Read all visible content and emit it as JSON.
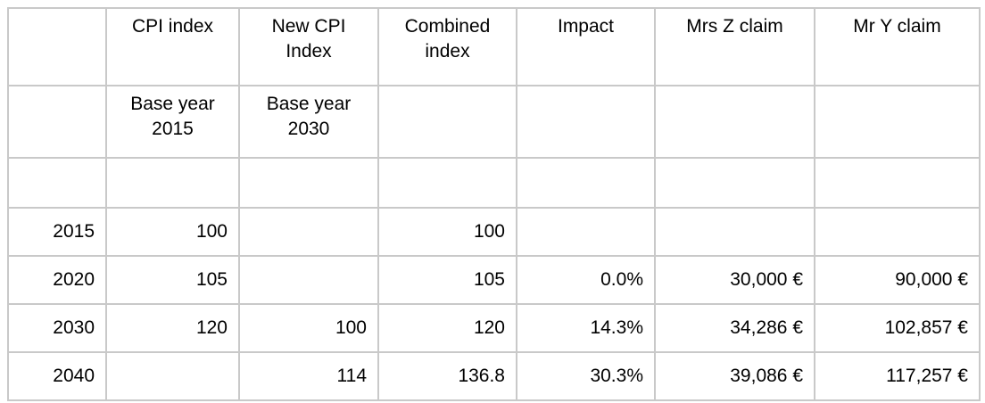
{
  "table": {
    "border_color": "#c9c9c9",
    "text_color": "#000000",
    "header_row": {
      "year": "",
      "cpi_index": "CPI index",
      "new_cpi_index": "New CPI\nIndex",
      "combined_index": "Combined\nindex",
      "impact": "Impact",
      "mrs_z_claim": "Mrs Z claim",
      "mr_y_claim": "Mr Y claim"
    },
    "subheader_row": {
      "year": "",
      "cpi_index": "Base year\n2015",
      "new_cpi_index": "Base year\n2030",
      "combined_index": "",
      "impact": "",
      "mrs_z_claim": "",
      "mr_y_claim": ""
    },
    "rows": [
      {
        "year": "2015",
        "cpi_index": "100",
        "new_cpi_index": "",
        "combined_index": "100",
        "impact": "",
        "mrs_z_claim": "",
        "mr_y_claim": ""
      },
      {
        "year": "2020",
        "cpi_index": "105",
        "new_cpi_index": "",
        "combined_index": "105",
        "impact": "0.0%",
        "mrs_z_claim": "30,000 €",
        "mr_y_claim": "90,000 €"
      },
      {
        "year": "2030",
        "cpi_index": "120",
        "new_cpi_index": "100",
        "combined_index": "120",
        "impact": "14.3%",
        "mrs_z_claim": "34,286 €",
        "mr_y_claim": "102,857 €"
      },
      {
        "year": "2040",
        "cpi_index": "",
        "new_cpi_index": "114",
        "combined_index": "136.8",
        "impact": "30.3%",
        "mrs_z_claim": "39,086 €",
        "mr_y_claim": "117,257 €"
      }
    ]
  }
}
